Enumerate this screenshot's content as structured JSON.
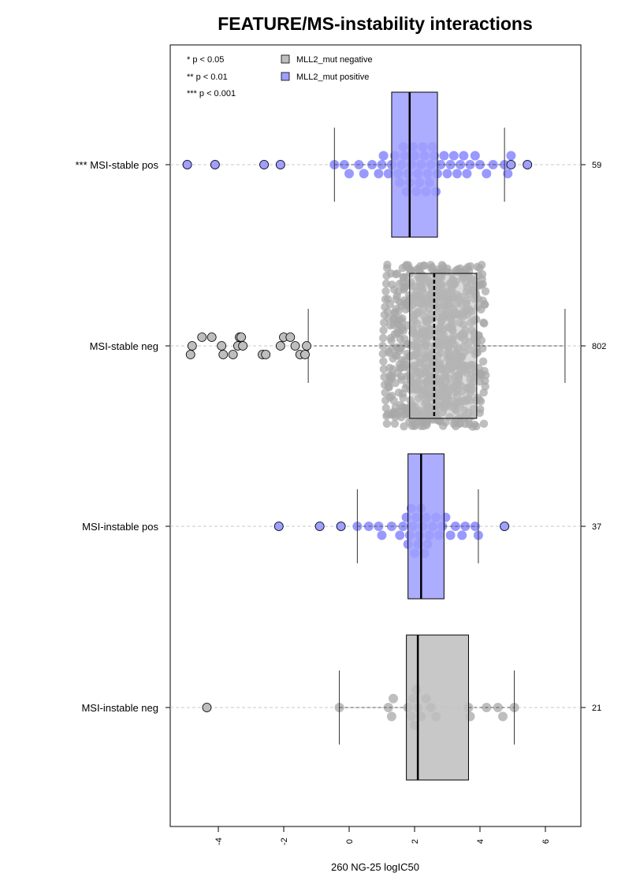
{
  "chart_data": {
    "type": "boxplot",
    "title": "FEATURE/MS-instability interactions",
    "xlabel": "260 NG-25 logIC50",
    "ylabel": "",
    "xlim": [
      -5.3,
      7.2
    ],
    "x_ticks": [
      -4,
      -2,
      0,
      2,
      4,
      6
    ],
    "x_tick_labels": [
      "-4",
      "-2",
      "0",
      "2",
      "4",
      "6"
    ],
    "grid": "dashed horizontal line per group",
    "significance_legend": [
      "* p < 0.05",
      "** p < 0.01",
      "*** p < 0.001"
    ],
    "legend": {
      "position": "top-left",
      "entries": [
        {
          "label": "MLL2_mut negative",
          "color": "#bebebe"
        },
        {
          "label": "MLL2_mut positive",
          "color": "#9f9fff"
        }
      ]
    },
    "groups": [
      {
        "label": "*** MSI-stable pos",
        "n": "59",
        "mut": "positive",
        "box": {
          "whisker_low": -0.45,
          "q1": 1.3,
          "median": 1.85,
          "q3": 2.7,
          "whisker_high": 4.75
        },
        "points": [
          -4.95,
          -4.1,
          -2.6,
          -2.1,
          -0.45,
          -0.15,
          0.0,
          0.3,
          0.45,
          0.7,
          0.9,
          1.0,
          1.05,
          1.2,
          1.3,
          1.4,
          1.5,
          1.55,
          1.6,
          1.65,
          1.7,
          1.75,
          1.8,
          1.85,
          1.9,
          1.95,
          2.0,
          2.05,
          2.1,
          2.15,
          2.2,
          2.25,
          2.3,
          2.35,
          2.4,
          2.45,
          2.5,
          2.55,
          2.6,
          2.65,
          2.7,
          2.8,
          2.9,
          3.0,
          3.1,
          3.2,
          3.3,
          3.4,
          3.5,
          3.6,
          3.7,
          3.85,
          4.0,
          4.2,
          4.4,
          4.75,
          4.85,
          4.95,
          5.45
        ],
        "outliers": [
          -4.95,
          -4.1,
          -2.6,
          -2.1,
          4.95,
          5.45
        ]
      },
      {
        "label": "MSI-stable neg",
        "n": "802",
        "mut": "negative",
        "box": {
          "whisker_low": -1.25,
          "q1": 1.85,
          "median": 2.6,
          "q3": 3.9,
          "whisker_high": 6.6
        },
        "points_summary": {
          "count": 802,
          "range": [
            -4.85,
            6.6
          ]
        },
        "outliers": [
          -4.85,
          -4.8,
          -4.5,
          -4.2,
          -3.9,
          -3.85,
          -3.55,
          -3.4,
          -3.35,
          -3.3,
          -3.25,
          -2.65,
          -2.55,
          -2.1,
          -2.0,
          -1.8,
          -1.65,
          -1.5,
          -1.35,
          -1.3
        ]
      },
      {
        "label": "MSI-instable pos",
        "n": "37",
        "mut": "positive",
        "box": {
          "whisker_low": 0.25,
          "q1": 1.8,
          "median": 2.2,
          "q3": 2.9,
          "whisker_high": 3.95
        },
        "points": [
          -2.15,
          -0.9,
          -0.25,
          0.25,
          0.6,
          0.9,
          1.0,
          1.3,
          1.55,
          1.65,
          1.75,
          1.8,
          1.85,
          1.9,
          1.95,
          2.0,
          2.05,
          2.1,
          2.15,
          2.2,
          2.25,
          2.3,
          2.35,
          2.4,
          2.45,
          2.55,
          2.65,
          2.75,
          2.85,
          2.95,
          3.1,
          3.25,
          3.45,
          3.55,
          3.85,
          3.95,
          4.75
        ],
        "outliers": [
          -2.15,
          -0.9,
          -0.25,
          4.75
        ]
      },
      {
        "label": "MSI-instable neg",
        "n": "21",
        "mut": "negative",
        "box": {
          "whisker_low": -0.3,
          "q1": 1.75,
          "median": 2.1,
          "q3": 3.65,
          "whisker_high": 5.05
        },
        "points": [
          -4.35,
          -0.3,
          1.2,
          1.3,
          1.35,
          1.8,
          1.9,
          1.95,
          2.0,
          2.05,
          2.1,
          2.2,
          2.35,
          2.5,
          2.65,
          3.65,
          3.7,
          4.2,
          4.55,
          4.7,
          5.05
        ],
        "outliers": [
          -4.35
        ]
      }
    ]
  }
}
